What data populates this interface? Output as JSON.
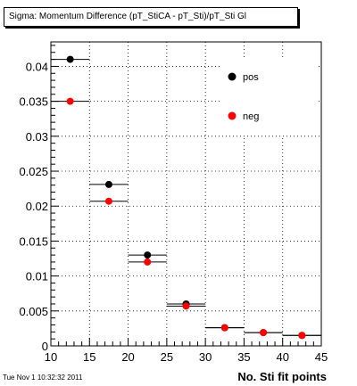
{
  "chart_data": {
    "type": "scatter",
    "title": "Sigma: Momentum Difference (pT_StiCA - pT_Sti)/pT_Sti Gl",
    "xlabel": "No. Sti fit points",
    "ylabel": "",
    "xlim": [
      10,
      45
    ],
    "ylim": [
      0,
      0.0435
    ],
    "xticks": [
      10,
      15,
      20,
      25,
      30,
      35,
      40,
      45
    ],
    "xtick_labels": [
      "10",
      "15",
      "20",
      "25",
      "30",
      "35",
      "40",
      "45"
    ],
    "yticks": [
      0,
      0.005,
      0.01,
      0.015,
      0.02,
      0.025,
      0.03,
      0.035,
      0.04
    ],
    "ytick_labels": [
      "0",
      "0.005",
      "0.01",
      "0.015",
      "0.02",
      "0.025",
      "0.03",
      "0.035",
      "0.04"
    ],
    "grid": true,
    "legend_position": "top-right",
    "series": [
      {
        "name": "pos",
        "color": "#000000",
        "points": [
          {
            "x": 12.5,
            "xlow": 10,
            "xhigh": 15,
            "y": 0.041
          },
          {
            "x": 17.5,
            "xlow": 15,
            "xhigh": 20,
            "y": 0.0231
          },
          {
            "x": 22.5,
            "xlow": 20,
            "xhigh": 25,
            "y": 0.013
          },
          {
            "x": 27.5,
            "xlow": 25,
            "xhigh": 30,
            "y": 0.006
          },
          {
            "x": 32.5,
            "xlow": 30,
            "xhigh": 35,
            "y": 0.0026
          },
          {
            "x": 37.5,
            "xlow": 35,
            "xhigh": 40,
            "y": 0.0019
          },
          {
            "x": 42.5,
            "xlow": 40,
            "xhigh": 45,
            "y": 0.0015
          }
        ]
      },
      {
        "name": "neg",
        "color": "#ff0000",
        "points": [
          {
            "x": 12.5,
            "xlow": 10,
            "xhigh": 15,
            "y": 0.035
          },
          {
            "x": 17.5,
            "xlow": 15,
            "xhigh": 20,
            "y": 0.0207
          },
          {
            "x": 22.5,
            "xlow": 20,
            "xhigh": 25,
            "y": 0.012
          },
          {
            "x": 27.5,
            "xlow": 25,
            "xhigh": 30,
            "y": 0.0057
          },
          {
            "x": 32.5,
            "xlow": 30,
            "xhigh": 35,
            "y": 0.0026
          },
          {
            "x": 37.5,
            "xlow": 35,
            "xhigh": 40,
            "y": 0.0019
          },
          {
            "x": 42.5,
            "xlow": 40,
            "xhigh": 45,
            "y": 0.0015
          }
        ]
      }
    ]
  },
  "footer": {
    "timestamp": "Tue Nov  1 10:32:32 2011"
  }
}
